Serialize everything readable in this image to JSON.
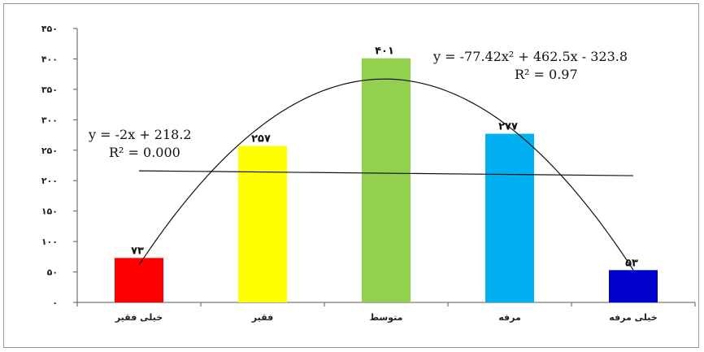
{
  "chart_data": {
    "type": "bar",
    "categories": [
      "خیلی فقیر",
      "فقیر",
      "متوسط",
      "مرفه",
      "خیلی مرفه"
    ],
    "values": [
      73,
      257,
      401,
      277,
      53
    ],
    "data_labels": [
      "۷۳",
      "۲۵۷",
      "۴۰۱",
      "۲۷۷",
      "۵۳"
    ],
    "colors": [
      "#ff0000",
      "#ffff00",
      "#92d050",
      "#00b0f0",
      "#0000cc"
    ],
    "ylim": [
      0,
      450
    ],
    "yticks": [
      0,
      50,
      100,
      150,
      200,
      250,
      300,
      350,
      400,
      450
    ],
    "ytick_labels": [
      "۰",
      "۵۰",
      "۱۰۰",
      "۱۵۰",
      "۲۰۰",
      "۲۵۰",
      "۳۰۰",
      "۳۵۰",
      "۴۰۰",
      "۴۵۰"
    ],
    "grid": false,
    "legend": "none",
    "trendlines": [
      {
        "kind": "linear",
        "equation": "y = -2x + 218.2",
        "r2": "R² = 0.000"
      },
      {
        "kind": "polynomial",
        "equation": "y = -77.42x² + 462.5x - 323.8",
        "r2": "R² = 0.97"
      }
    ]
  }
}
